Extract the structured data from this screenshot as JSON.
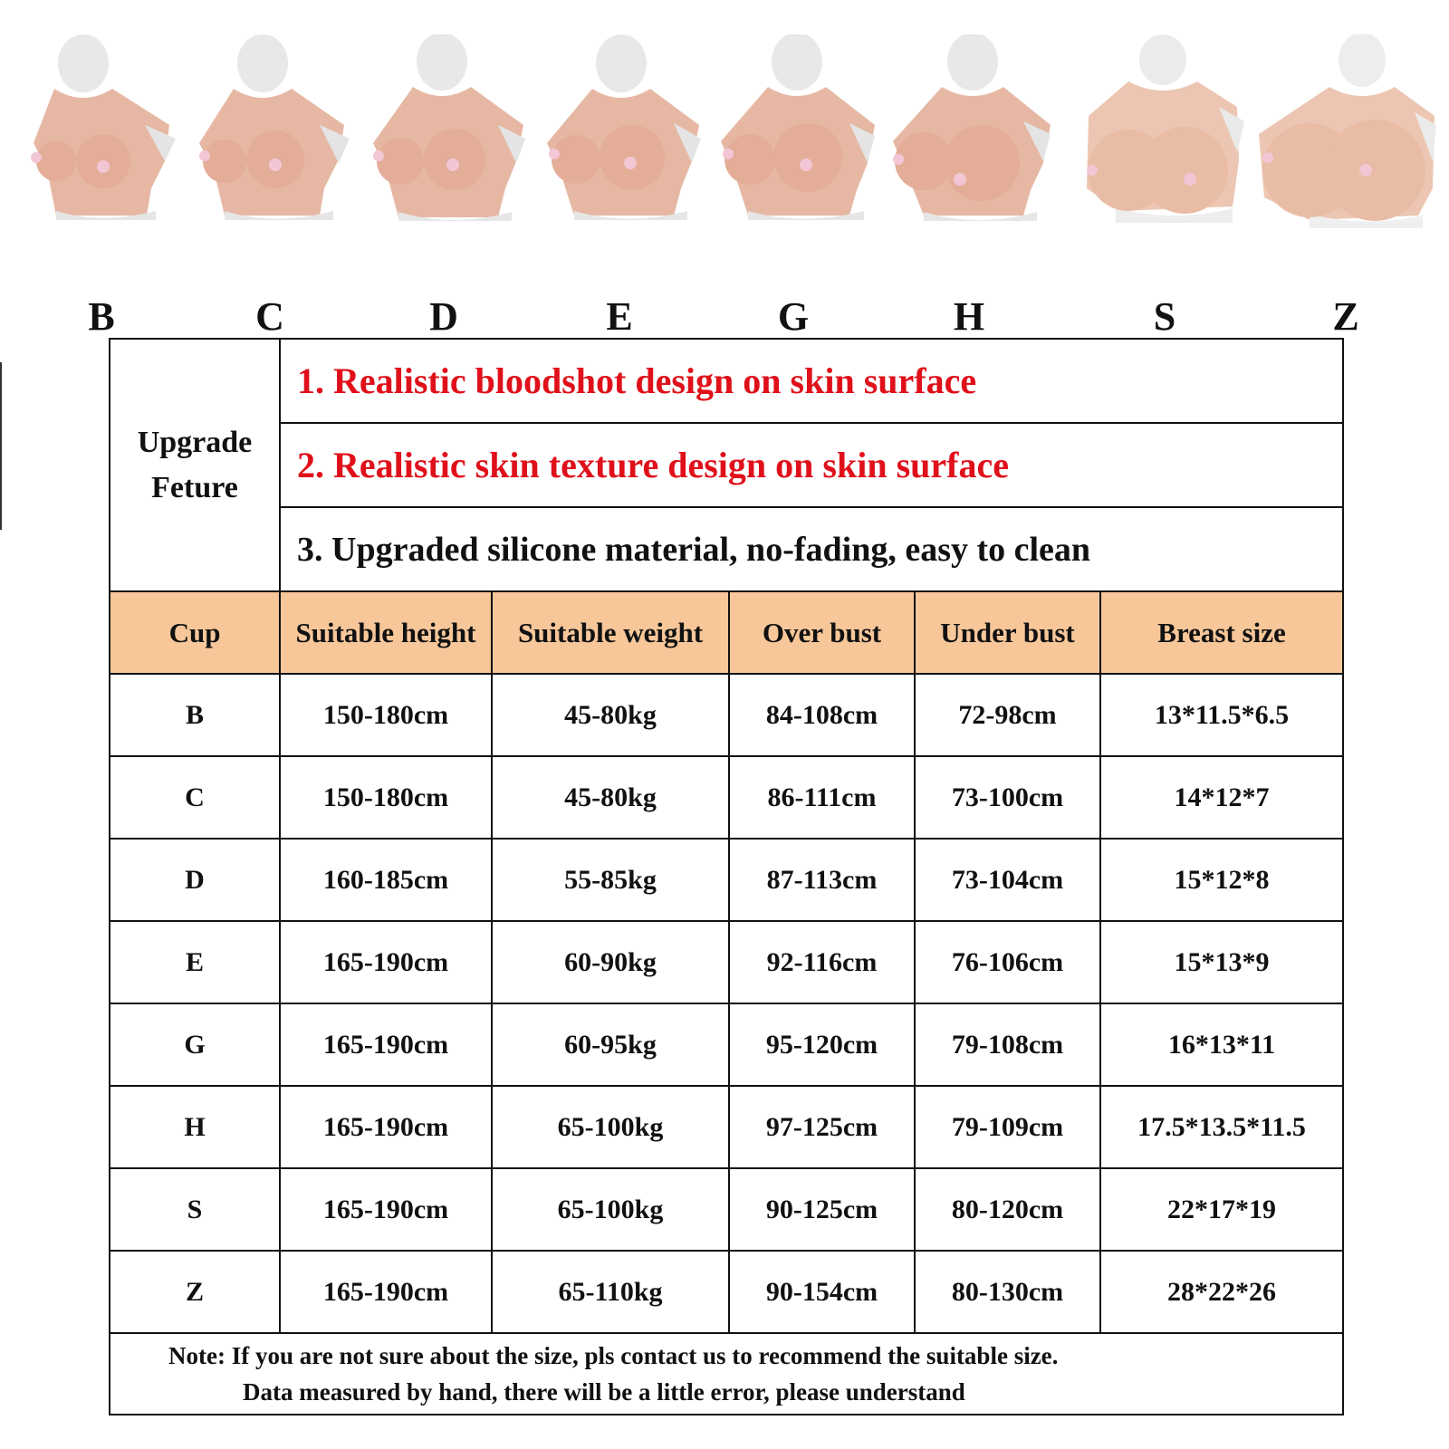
{
  "products": [
    {
      "letter": "B"
    },
    {
      "letter": "C"
    },
    {
      "letter": "D"
    },
    {
      "letter": "E"
    },
    {
      "letter": "G"
    },
    {
      "letter": "H"
    },
    {
      "letter": "S"
    },
    {
      "letter": "Z"
    }
  ],
  "features": {
    "label_line1": "Upgrade",
    "label_line2": "Feture",
    "items": [
      "1. Realistic bloodshot design on skin surface",
      "2. Realistic skin texture design on skin surface",
      "3. Upgraded silicone material, no-fading, easy to clean"
    ],
    "colors": [
      "#e0101a",
      "#e0101a",
      "#111111"
    ]
  },
  "table": {
    "header_color": "#f7c79a",
    "headers": [
      "Cup",
      "Suitable height",
      "Suitable weight",
      "Over bust",
      "Under bust",
      "Breast size"
    ],
    "rows": [
      [
        "B",
        "150-180cm",
        "45-80kg",
        "84-108cm",
        "72-98cm",
        "13*11.5*6.5"
      ],
      [
        "C",
        "150-180cm",
        "45-80kg",
        "86-111cm",
        "73-100cm",
        "14*12*7"
      ],
      [
        "D",
        "160-185cm",
        "55-85kg",
        "87-113cm",
        "73-104cm",
        "15*12*8"
      ],
      [
        "E",
        "165-190cm",
        "60-90kg",
        "92-116cm",
        "76-106cm",
        "15*13*9"
      ],
      [
        "G",
        "165-190cm",
        "60-95kg",
        "95-120cm",
        "79-108cm",
        "16*13*11"
      ],
      [
        "H",
        "165-190cm",
        "65-100kg",
        "97-125cm",
        "79-109cm",
        "17.5*13.5*11.5"
      ],
      [
        "S",
        "165-190cm",
        "65-100kg",
        "90-125cm",
        "80-120cm",
        "22*17*19"
      ],
      [
        "Z",
        "165-190cm",
        "65-110kg",
        "90-154cm",
        "80-130cm",
        "28*22*26"
      ]
    ]
  },
  "note": {
    "line1": "Note: If you are not sure about the size, pls contact us to recommend the suitable size.",
    "line2": "Data measured by hand, there will be a little  error, please understand"
  }
}
